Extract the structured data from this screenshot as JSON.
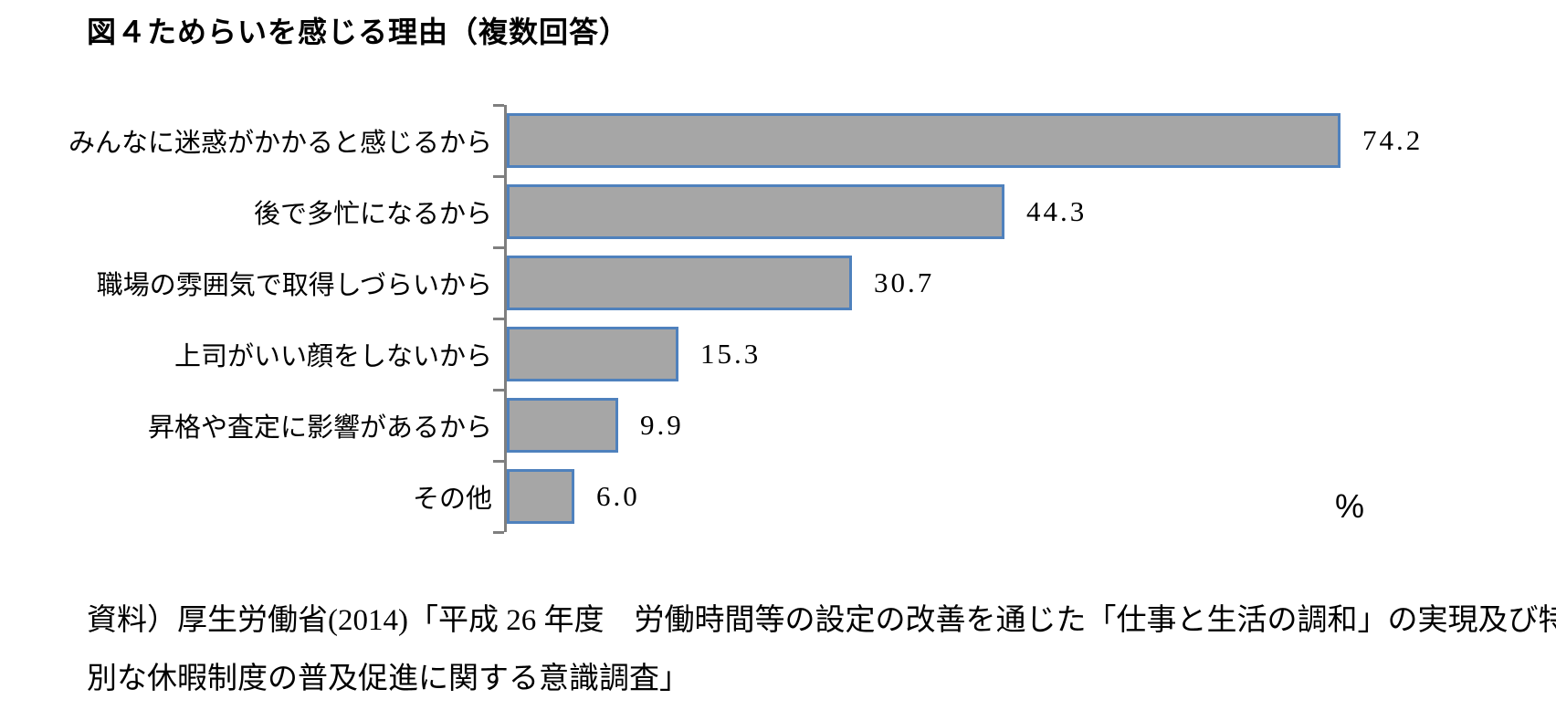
{
  "title": "図４ためらいを感じる理由（複数回答）",
  "chart_data": {
    "type": "bar",
    "orientation": "horizontal",
    "title": "図４ためらいを感じる理由（複数回答）",
    "categories": [
      "みんなに迷惑がかかると感じるから",
      "後で多忙になるから",
      "職場の雰囲気で取得しづらいから",
      "上司がいい顔をしないから",
      "昇格や査定に影響があるから",
      "その他"
    ],
    "values": [
      74.2,
      44.3,
      30.7,
      15.3,
      9.9,
      6.0
    ],
    "value_labels": [
      "74.2",
      "44.3",
      "30.7",
      "15.3",
      "9.9",
      "6.0"
    ],
    "unit_label": "%",
    "xlabel": "",
    "ylabel": "",
    "xlim": [
      0,
      92
    ],
    "grid": false,
    "legend": false,
    "data_labels": "outside-end",
    "colors": {
      "bar_fill": "#a6a6a6",
      "bar_border": "#4f81bd",
      "axis": "#7f7f7f",
      "text": "#000000"
    }
  },
  "source": {
    "line1": "資料）厚生労働省(2014)「平成 26 年度　労働時間等の設定の改善を通じた「仕事と生活の調和」の実現及び特",
    "line2": "別な休暇制度の普及促進に関する意識調査」"
  }
}
